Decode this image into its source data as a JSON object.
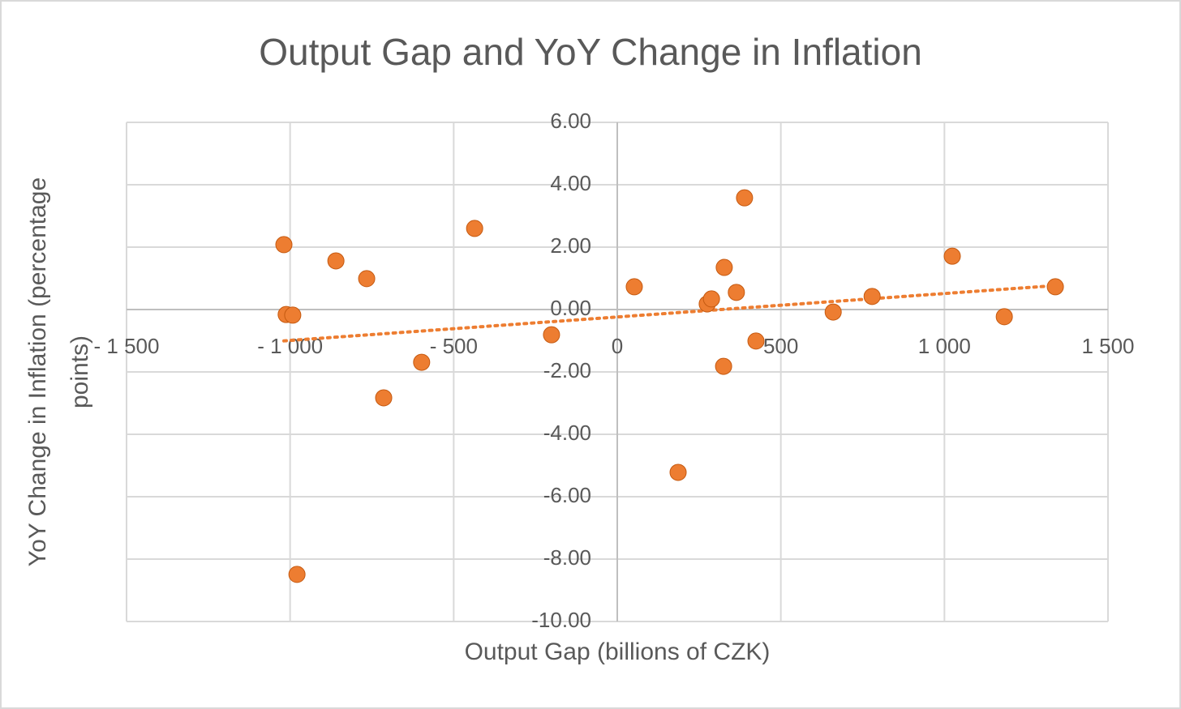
{
  "chart_data": {
    "type": "scatter",
    "title": "Output Gap and  YoY Change in Inflation",
    "xlabel": "Output Gap (billions of CZK)",
    "ylabel": [
      "YoY Change in Inflation (percentage",
      "points)"
    ],
    "x": [
      -1019,
      -1012,
      -992,
      -860,
      -766,
      -436,
      -714,
      -598,
      -979,
      -201,
      52,
      186,
      275,
      288,
      327,
      389,
      364,
      325,
      424,
      660,
      779,
      1024,
      1183,
      1339
    ],
    "y": [
      2.08,
      -0.16,
      -0.18,
      1.56,
      0.99,
      2.6,
      -2.83,
      -1.69,
      -8.49,
      -0.81,
      0.73,
      -5.22,
      0.18,
      0.34,
      1.35,
      3.58,
      0.55,
      -1.82,
      -1.01,
      -0.08,
      0.42,
      1.71,
      -0.23,
      0.73
    ],
    "color": "#ed7d31",
    "trendline": "linear",
    "xlim": [
      -1500,
      1500
    ],
    "xticks": [
      {
        "value": -1500,
        "label": "- 1 500"
      },
      {
        "value": -1000,
        "label": "- 1 000"
      },
      {
        "value": -500,
        "label": "- 500"
      },
      0,
      500,
      {
        "value": 1000,
        "label": "1 000"
      },
      {
        "value": 1500,
        "label": "1 500"
      }
    ],
    "ylim": [
      -10,
      6
    ],
    "yticks": [
      {
        "value": -10,
        "label": "-10.00"
      },
      {
        "value": -8,
        "label": "-8.00"
      },
      {
        "value": -6,
        "label": "-6.00"
      },
      {
        "value": -4,
        "label": "-4.00"
      },
      {
        "value": -2,
        "label": "-2.00"
      },
      {
        "value": 0,
        "label": "0.00"
      },
      {
        "value": 2,
        "label": "2.00"
      },
      {
        "value": 4,
        "label": "4.00"
      },
      {
        "value": 6,
        "label": "6.00"
      }
    ],
    "grid": true
  }
}
